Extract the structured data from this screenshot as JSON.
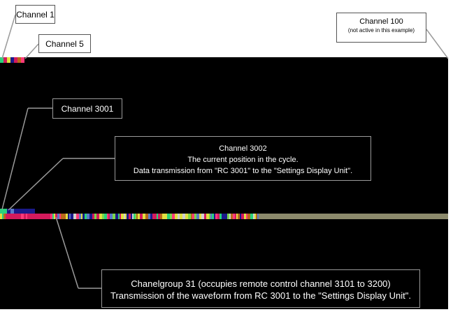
{
  "callouts": {
    "channel_1": "Channel  1",
    "channel_5": "Channel  5",
    "channel_100": "Channel  100",
    "channel_100_note": "(not active in this example)",
    "channel_3001": "Channel  3001",
    "channel_3002": "Channel  3002",
    "channel_3002_line2": "The current position in the cycle.",
    "channel_3002_line3": "Data transmission from \"RC 3001\" to the \"Settings Display Unit\".",
    "group_31_line1": "Chanelgroup 31 (occupies remote control channel 3101 to 3200)",
    "group_31_line2": "Transmission of the waveform from RC 3001 to the \"Settings Display Unit\"."
  },
  "colors": {
    "display_background": "#000000",
    "page_background": "#ffffff",
    "leader_line": "#9a9a9a",
    "inactive_channel": "#8c8a6c",
    "channel_palette": [
      "#d41a5c",
      "#2ad27c",
      "#1a1a8a",
      "#b86a1a",
      "#e0e040",
      "#7ad84a",
      "#5a7ac8",
      "#cfcfcf",
      "#ff3a7a"
    ]
  }
}
